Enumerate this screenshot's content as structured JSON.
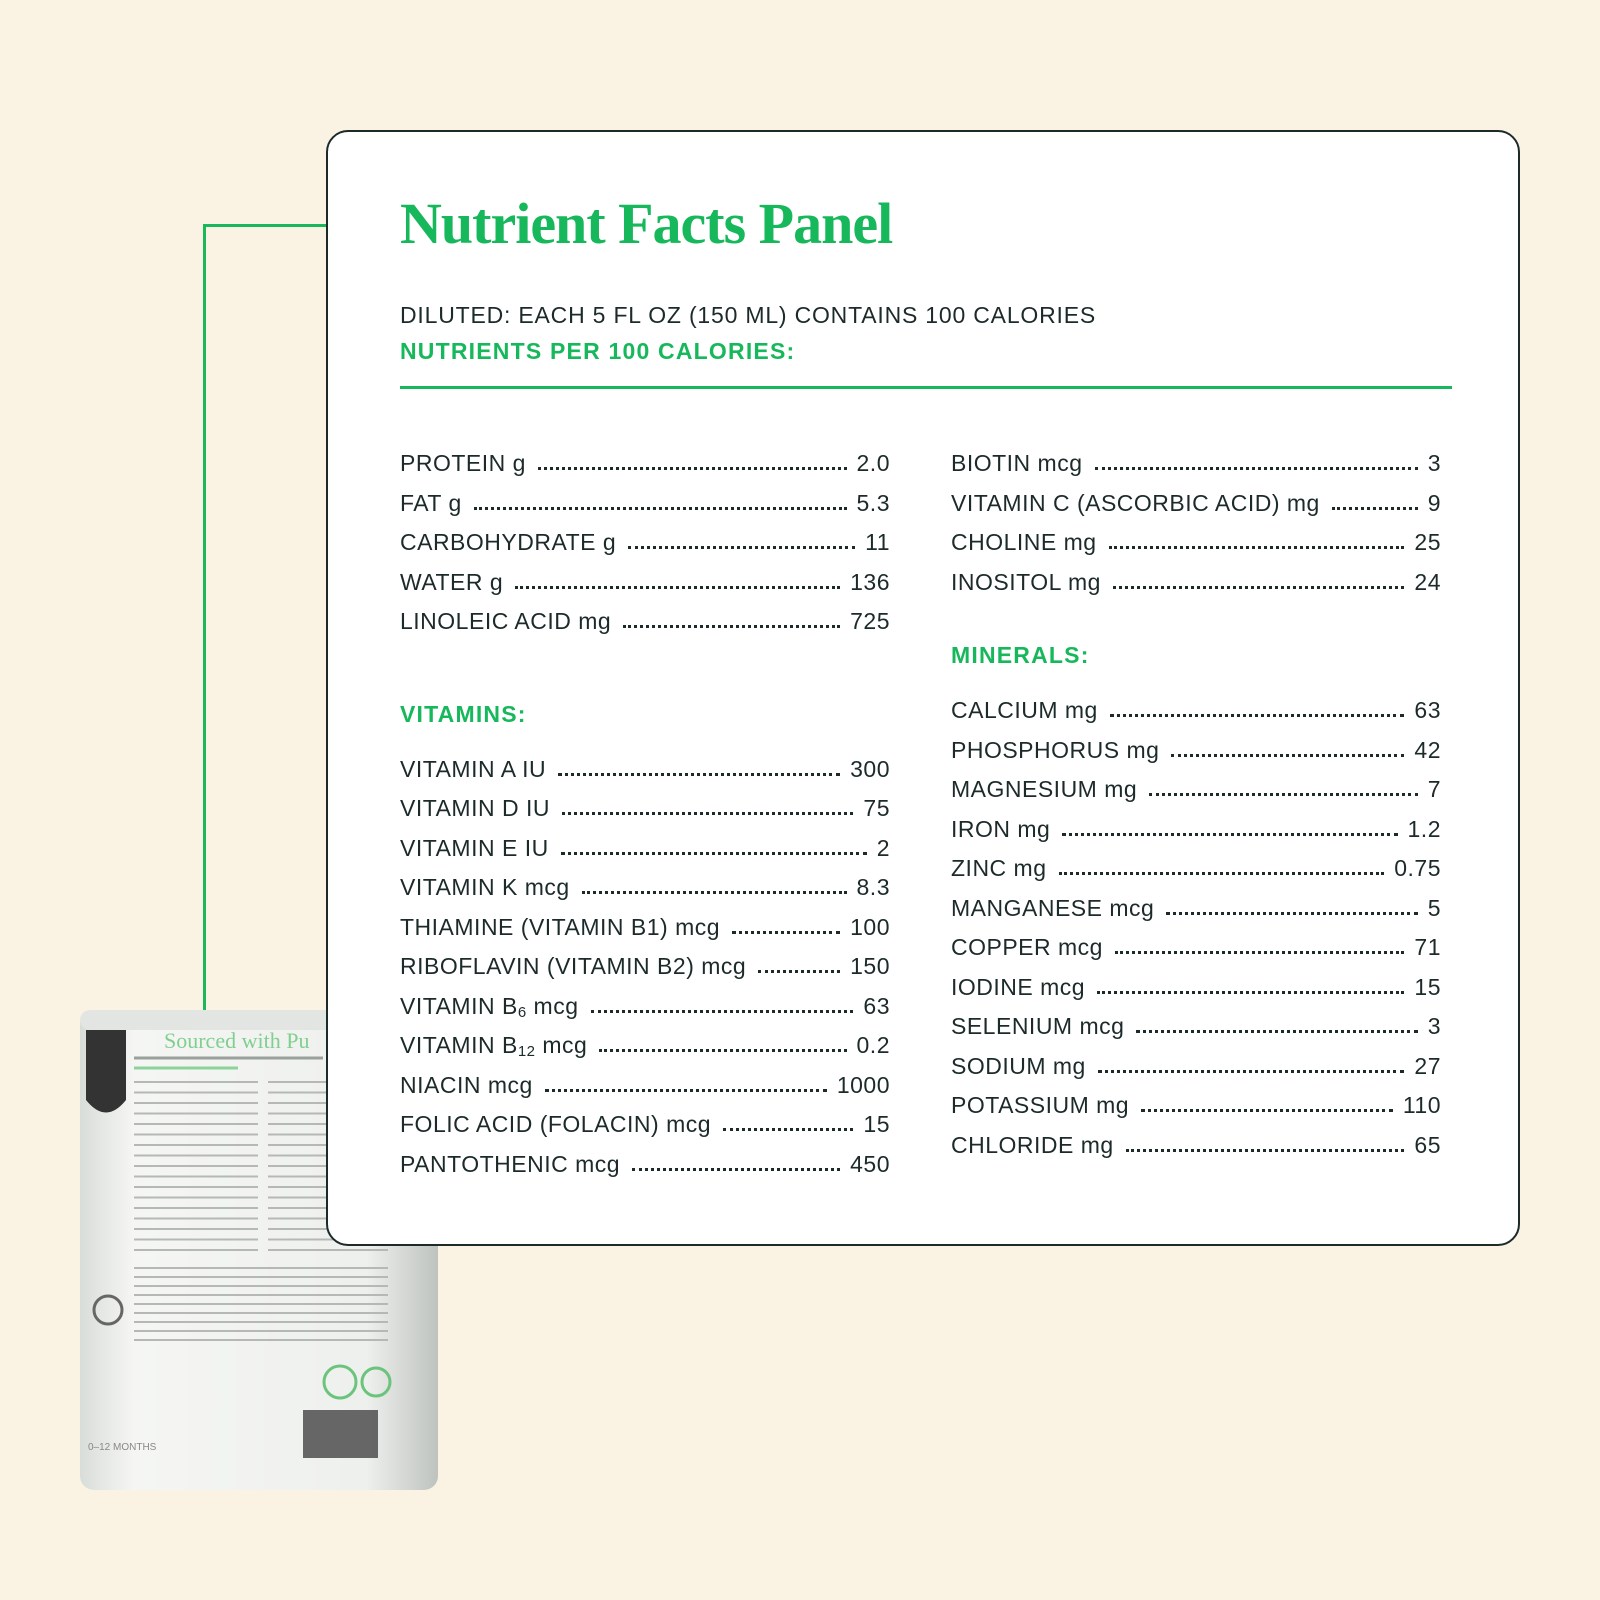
{
  "panel": {
    "title": "Nutrient Facts Panel",
    "serving": "DILUTED: EACH 5 FL OZ (150 ML) CONTAINS 100 CALORIES",
    "per_label": "NUTRIENTS PER 100 CALORIES:",
    "accent_color": "#17b85b",
    "left_general": [
      {
        "label": "PROTEIN g",
        "value": "2.0"
      },
      {
        "label": "FAT g",
        "value": "5.3"
      },
      {
        "label": "CARBOHYDRATE g",
        "value": "11"
      },
      {
        "label": "WATER g",
        "value": "136"
      },
      {
        "label": "LINOLEIC ACID mg",
        "value": "725"
      }
    ],
    "vitamins_heading": "VITAMINS:",
    "vitamins": [
      {
        "label": "VITAMIN A IU",
        "value": "300"
      },
      {
        "label": "VITAMIN D IU",
        "value": "75"
      },
      {
        "label": "VITAMIN E IU",
        "value": "2"
      },
      {
        "label": "VITAMIN K mcg",
        "value": "8.3"
      },
      {
        "label": "THIAMINE (VITAMIN B1) mcg",
        "value": "100"
      },
      {
        "label": "RIBOFLAVIN (VITAMIN B2) mcg",
        "value": "150"
      },
      {
        "label": "VITAMIN B",
        "sub": "6",
        "suffix": " mcg",
        "value": "63"
      },
      {
        "label": "VITAMIN B",
        "sub": "12",
        "suffix": " mcg",
        "value": "0.2"
      },
      {
        "label": "NIACIN mcg",
        "value": "1000"
      },
      {
        "label": "FOLIC ACID (FOLACIN) mcg",
        "value": "15"
      },
      {
        "label": "PANTOTHENIC mcg",
        "value": "450"
      }
    ],
    "right_general": [
      {
        "label": "BIOTIN mcg",
        "value": "3"
      },
      {
        "label": "VITAMIN C (ASCORBIC ACID) mg",
        "value": "9"
      },
      {
        "label": "CHOLINE mg",
        "value": "25"
      },
      {
        "label": "INOSITOL mg",
        "value": "24"
      }
    ],
    "minerals_heading": "MINERALS:",
    "minerals": [
      {
        "label": "CALCIUM mg",
        "value": "63"
      },
      {
        "label": "PHOSPHORUS mg",
        "value": "42"
      },
      {
        "label": "MAGNESIUM mg",
        "value": "7"
      },
      {
        "label": "IRON mg",
        "value": "1.2"
      },
      {
        "label": "ZINC mg",
        "value": "0.75"
      },
      {
        "label": "MANGANESE mcg",
        "value": "5"
      },
      {
        "label": "COPPER mcg",
        "value": "71"
      },
      {
        "label": "IODINE mcg",
        "value": "15"
      },
      {
        "label": "SELENIUM mcg",
        "value": "3"
      },
      {
        "label": "SODIUM mg",
        "value": "27"
      },
      {
        "label": "POTASSIUM mg",
        "value": "110"
      },
      {
        "label": "CHLORIDE mg",
        "value": "65"
      }
    ]
  },
  "product_photo": {
    "label_headline": "Sourced with Pu",
    "label_age": "0–12 MONTHS"
  }
}
